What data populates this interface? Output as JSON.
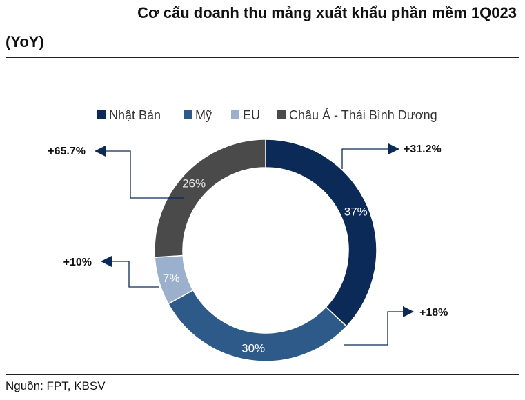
{
  "title": {
    "line1": "Cơ cấu doanh thu mảng xuất khẩu phần mềm 1Q023",
    "line2": "(YoY)"
  },
  "source": "Nguồn: FPT, KBSV",
  "chart_data": {
    "type": "pie",
    "subtype": "donut",
    "title": "Cơ cấu doanh thu mảng xuất khẩu phần mềm 1Q023 (YoY)",
    "legend_position": "top",
    "series": [
      {
        "name": "Nhật Bản",
        "value": 37,
        "label": "37%",
        "growth": "+31.2%",
        "color": "#0b2a57",
        "label_color": "#ffffff"
      },
      {
        "name": "Mỹ",
        "value": 30,
        "label": "30%",
        "growth": "+18%",
        "color": "#2e5a8a",
        "label_color": "#ffffff"
      },
      {
        "name": "EU",
        "value": 7,
        "label": "7%",
        "growth": "+10%",
        "color": "#9bb0cc",
        "label_color": "#ffffff"
      },
      {
        "name": "Châu Á - Thái Bình Dương",
        "value": 26,
        "label": "26%",
        "growth": "+65.7%",
        "color": "#4a4a4a",
        "label_color": "#e8e8e8"
      }
    ]
  },
  "colors": {
    "arrow": "#0b2a57",
    "rule": "#222222"
  }
}
